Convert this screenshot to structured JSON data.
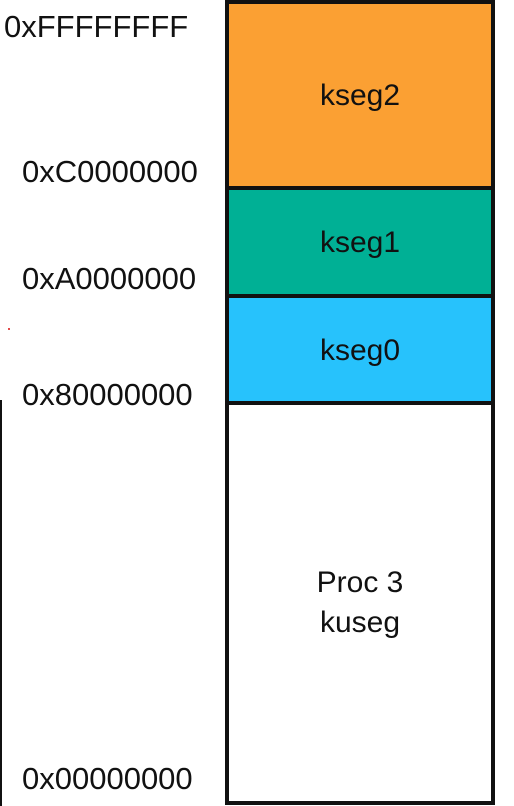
{
  "addresses": {
    "top": "0xFFFFFFFF",
    "c": "0xC0000000",
    "a": "0xA0000000",
    "eight": "0x80000000",
    "zero": "0x00000000"
  },
  "segments": {
    "kseg2": {
      "label": "kseg2",
      "color": "#fba033"
    },
    "kseg1": {
      "label": "kseg1",
      "color": "#00b095"
    },
    "kseg0": {
      "label": "kseg0",
      "color": "#27c2fc"
    },
    "kuseg": {
      "label_line1": "Proc 3",
      "label_line2": "kuseg",
      "color": "#ffffff"
    }
  }
}
